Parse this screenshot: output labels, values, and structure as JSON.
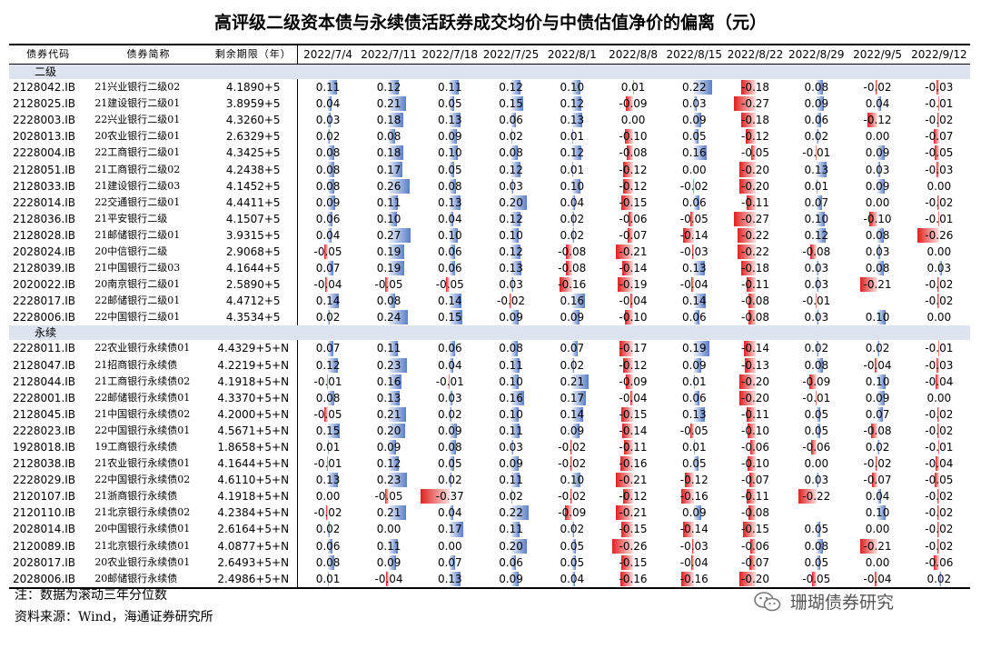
{
  "title": "高评级二级资本债与永续债活跃券成交均价与中债估值净价的偏离（元）",
  "headers": [
    "债券代码",
    "债券简称",
    "剩余期限（年）"
  ],
  "dates": [
    "2022/7/4",
    "2022/7/11",
    "2022/7/18",
    "2022/7/25",
    "2022/8/1",
    "2022/8/8",
    "2022/8/15",
    "2022/8/22",
    "2022/8/29",
    "2022/9/5",
    "2022/9/12"
  ],
  "sections": [
    {
      "label": "二级",
      "rows": [
        {
          "code": "2128042.IB",
          "name": "21兴业银行二级02",
          "term": "4.1890+5",
          "values": [
            "0.11",
            "0.12",
            "0.11",
            "0.12",
            "0.10",
            "0.01",
            "0.22",
            "-0.18",
            "0.08",
            "-0.02",
            "-0.03"
          ]
        },
        {
          "code": "2128025.IB",
          "name": "21建设银行二级01",
          "term": "3.8959+5",
          "values": [
            "0.04",
            "0.21",
            "0.05",
            "0.15",
            "0.12",
            "-0.09",
            "0.03",
            "-0.27",
            "0.09",
            "0.04",
            "-0.01"
          ]
        },
        {
          "code": "2228003.IB",
          "name": "22兴业银行二级01",
          "term": "4.3260+5",
          "values": [
            "0.03",
            "0.18",
            "0.13",
            "0.06",
            "0.13",
            "0.00",
            "0.09",
            "-0.18",
            "0.06",
            "-0.12",
            "-0.02"
          ]
        },
        {
          "code": "2028013.IB",
          "name": "20农业银行二级01",
          "term": "2.6329+5",
          "values": [
            "0.02",
            "0.08",
            "0.09",
            "0.02",
            "0.01",
            "-0.10",
            "0.05",
            "-0.12",
            "0.02",
            "0.00",
            "-0.07"
          ]
        },
        {
          "code": "2228004.IB",
          "name": "22工商银行二级01",
          "term": "4.3425+5",
          "values": [
            "0.08",
            "0.18",
            "0.10",
            "0.08",
            "0.12",
            "-0.08",
            "0.16",
            "-0.05",
            "-0.01",
            "0.09",
            "-0.05"
          ]
        },
        {
          "code": "2128051.IB",
          "name": "21工商银行二级02",
          "term": "4.2438+5",
          "values": [
            "0.08",
            "0.17",
            "0.05",
            "0.12",
            "0.01",
            "-0.12",
            "0.00",
            "-0.20",
            "0.13",
            "0.03",
            "-0.03"
          ]
        },
        {
          "code": "2128033.IB",
          "name": "21建设银行二级03",
          "term": "4.1452+5",
          "values": [
            "0.08",
            "0.26",
            "0.08",
            "0.03",
            "0.10",
            "-0.12",
            "-0.02",
            "-0.20",
            "0.01",
            "0.09",
            "0.00"
          ]
        },
        {
          "code": "2228014.IB",
          "name": "22交通银行二级01",
          "term": "4.4411+5",
          "values": [
            "0.09",
            "0.11",
            "0.13",
            "0.20",
            "0.04",
            "-0.15",
            "0.06",
            "-0.11",
            "0.07",
            "0.00",
            "-0.02"
          ]
        },
        {
          "code": "2128036.IB",
          "name": "21平安银行二级",
          "term": "4.1507+5",
          "values": [
            "0.06",
            "0.10",
            "0.04",
            "0.12",
            "0.02",
            "-0.06",
            "-0.05",
            "-0.27",
            "0.10",
            "-0.10",
            "-0.01"
          ]
        },
        {
          "code": "2128028.IB",
          "name": "21邮储银行二级01",
          "term": "3.9315+5",
          "values": [
            "0.04",
            "0.27",
            "0.10",
            "0.10",
            "0.02",
            "-0.07",
            "-0.14",
            "-0.22",
            "0.12",
            "0.08",
            "-0.26"
          ]
        },
        {
          "code": "2028024.IB",
          "name": "20中信银行二级",
          "term": "2.9068+5",
          "values": [
            "-0.05",
            "0.19",
            "0.06",
            "0.12",
            "-0.08",
            "-0.21",
            "-0.03",
            "-0.22",
            "-0.08",
            "0.03",
            "0.00"
          ]
        },
        {
          "code": "2128039.IB",
          "name": "21中国银行二级03",
          "term": "4.1644+5",
          "values": [
            "0.07",
            "0.19",
            "0.06",
            "0.13",
            "-0.08",
            "-0.14",
            "0.13",
            "-0.18",
            "0.03",
            "0.08",
            "0.03"
          ]
        },
        {
          "code": "2020022.IB",
          "name": "20南京银行二级01",
          "term": "2.5890+5",
          "values": [
            "-0.04",
            "-0.05",
            "-0.05",
            "0.03",
            "-0.16",
            "-0.19",
            "-0.04",
            "-0.11",
            "0.03",
            "-0.21",
            "-0.02"
          ]
        },
        {
          "code": "2228017.IB",
          "name": "22邮储银行二级01",
          "term": "4.4712+5",
          "values": [
            "0.14",
            "0.08",
            "0.14",
            "-0.02",
            "0.16",
            "-0.04",
            "0.14",
            "-0.08",
            "-0.01",
            "",
            "-0.02"
          ]
        },
        {
          "code": "2228006.IB",
          "name": "22中国银行二级01",
          "term": "4.3534+5",
          "values": [
            "0.02",
            "0.24",
            "0.15",
            "0.09",
            "0.09",
            "-0.10",
            "0.06",
            "-0.08",
            "0.03",
            "0.10",
            "0.00"
          ]
        }
      ]
    },
    {
      "label": "永续",
      "rows": [
        {
          "code": "2228011.IB",
          "name": "22农业银行永续债01",
          "term": "4.4329+5+N",
          "values": [
            "0.07",
            "0.11",
            "0.06",
            "0.08",
            "0.07",
            "-0.17",
            "0.19",
            "-0.14",
            "0.02",
            "0.02",
            "-0.01"
          ]
        },
        {
          "code": "2128047.IB",
          "name": "21招商银行永续债",
          "term": "4.2219+5+N",
          "values": [
            "0.12",
            "0.23",
            "0.04",
            "0.11",
            "0.02",
            "-0.12",
            "0.09",
            "-0.13",
            "0.08",
            "-0.04",
            "-0.03"
          ]
        },
        {
          "code": "2128044.IB",
          "name": "21工商银行永续债02",
          "term": "4.1918+5+N",
          "values": [
            "-0.01",
            "0.16",
            "-0.01",
            "0.10",
            "0.21",
            "-0.09",
            "0.01",
            "-0.20",
            "-0.09",
            "0.10",
            "-0.04"
          ]
        },
        {
          "code": "2228001.IB",
          "name": "22邮储银行永续债01",
          "term": "4.3370+5+N",
          "values": [
            "0.08",
            "0.13",
            "0.03",
            "0.16",
            "0.17",
            "-0.04",
            "0.06",
            "-0.20",
            "-0.01",
            "0.09",
            "0.00"
          ]
        },
        {
          "code": "2128045.IB",
          "name": "21中国银行永续债02",
          "term": "4.2000+5+N",
          "values": [
            "-0.05",
            "0.21",
            "0.02",
            "0.10",
            "0.14",
            "-0.15",
            "0.13",
            "-0.11",
            "0.05",
            "0.07",
            "-0.02"
          ]
        },
        {
          "code": "2228023.IB",
          "name": "22中国银行永续债01",
          "term": "4.5671+5+N",
          "values": [
            "0.15",
            "0.20",
            "0.09",
            "0.11",
            "0.09",
            "-0.14",
            "-0.05",
            "-0.10",
            "0.05",
            "-0.08",
            "-0.02"
          ]
        },
        {
          "code": "1928018.IB",
          "name": "19工商银行永续债",
          "term": "1.8658+5+N",
          "values": [
            "0.01",
            "0.09",
            "0.08",
            "0.03",
            "-0.02",
            "-0.11",
            "0.01",
            "-0.06",
            "-0.06",
            "0.02",
            "-0.01"
          ]
        },
        {
          "code": "2128038.IB",
          "name": "21农业银行永续债01",
          "term": "4.1644+5+N",
          "values": [
            "-0.01",
            "0.12",
            "0.05",
            "0.09",
            "-0.02",
            "-0.16",
            "0.05",
            "-0.10",
            "0.00",
            "-0.02",
            "-0.04"
          ]
        },
        {
          "code": "2228029.IB",
          "name": "22中国银行永续债02",
          "term": "4.6110+5+N",
          "values": [
            "0.13",
            "0.23",
            "0.02",
            "0.11",
            "0.10",
            "-0.21",
            "-0.12",
            "-0.07",
            "0.03",
            "-0.07",
            "-0.05"
          ]
        },
        {
          "code": "2120107.IB",
          "name": "21浙商银行永续债",
          "term": "4.1918+5+N",
          "values": [
            "0.00",
            "-0.05",
            "-0.37",
            "0.02",
            "-0.02",
            "-0.12",
            "-0.16",
            "-0.11",
            "-0.22",
            "0.04",
            "-0.02"
          ]
        },
        {
          "code": "2120110.IB",
          "name": "21北京银行永续债02",
          "term": "4.2384+5+N",
          "values": [
            "-0.02",
            "0.21",
            "0.04",
            "0.22",
            "-0.09",
            "-0.21",
            "0.09",
            "-0.08",
            "",
            "0.10",
            "-0.02"
          ]
        },
        {
          "code": "2028014.IB",
          "name": "20中国银行永续债01",
          "term": "2.6164+5+N",
          "values": [
            "0.02",
            "0.00",
            "0.17",
            "0.11",
            "0.02",
            "-0.15",
            "-0.14",
            "-0.15",
            "0.05",
            "0.00",
            "-0.02"
          ]
        },
        {
          "code": "2120089.IB",
          "name": "21北京银行永续债01",
          "term": "4.0877+5+N",
          "values": [
            "0.06",
            "0.11",
            "0.00",
            "0.20",
            "0.05",
            "-0.26",
            "-0.03",
            "-0.06",
            "0.08",
            "-0.21",
            "-0.02"
          ]
        },
        {
          "code": "2028017.IB",
          "name": "20农业银行永续债01",
          "term": "2.6493+5+N",
          "values": [
            "0.08",
            "0.09",
            "0.07",
            "0.06",
            "0.05",
            "-0.15",
            "-0.04",
            "-0.07",
            "0.05",
            "0.00",
            "-0.06"
          ]
        },
        {
          "code": "2028006.IB",
          "name": "20邮储银行永续债",
          "term": "2.4986+5+N",
          "values": [
            "0.01",
            "-0.04",
            "0.13",
            "0.09",
            "0.04",
            "-0.16",
            "-0.16",
            "-0.20",
            "-0.05",
            "-0.04",
            "0.02"
          ]
        }
      ]
    }
  ],
  "colors": {
    "positive": "#5b7fc8",
    "negative": "#e02020",
    "section_bg": "#dde3ef"
  },
  "note": "注：数据为滚动三年分位数",
  "source": "资料来源：Wind，海通证券研究所",
  "brand": "珊瑚债券研究",
  "brand_icon": "wechat-icon"
}
